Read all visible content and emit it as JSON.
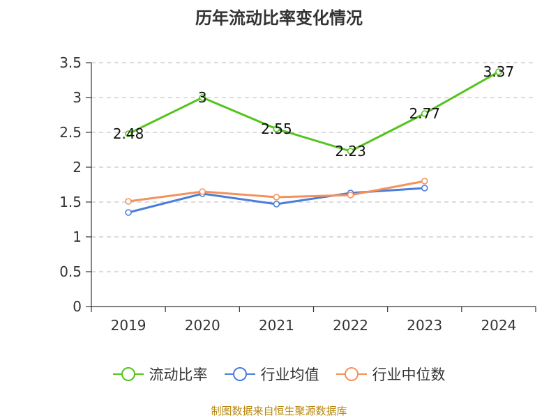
{
  "chart_data": {
    "type": "line",
    "title": "历年流动比率变化情况",
    "categories": [
      "2019",
      "2020",
      "2021",
      "2022",
      "2023",
      "2024"
    ],
    "ylim": [
      0,
      3.5
    ],
    "yticks": [
      "0",
      "0.5",
      "1",
      "1.5",
      "2",
      "2.5",
      "3",
      "3.5"
    ],
    "grid": true,
    "legend_position": "bottom",
    "series": [
      {
        "name": "流动比率",
        "color": "#52c41a",
        "values": [
          2.48,
          3,
          2.55,
          2.23,
          2.77,
          3.37
        ],
        "labels": [
          "2.48",
          "3",
          "2.55",
          "2.23",
          "2.77",
          "3.37"
        ]
      },
      {
        "name": "行业均值",
        "color": "#4a7ddb",
        "values": [
          1.35,
          1.62,
          1.47,
          1.63,
          1.7,
          null
        ]
      },
      {
        "name": "行业中位数",
        "color": "#f4915a",
        "values": [
          1.51,
          1.65,
          1.57,
          1.6,
          1.8,
          null
        ]
      }
    ]
  },
  "footer": {
    "source": "制图数据来自恒生聚源数据库"
  }
}
